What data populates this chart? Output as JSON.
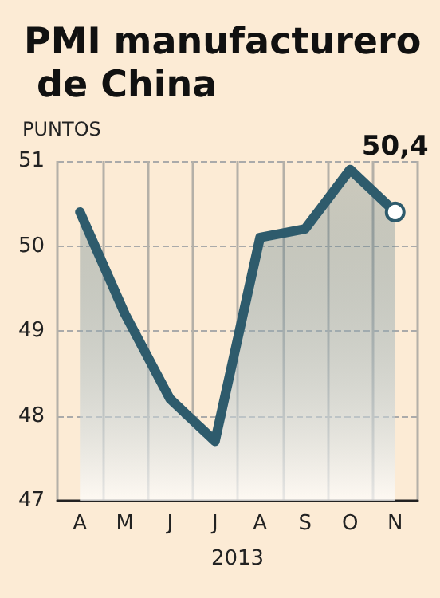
{
  "chart_data": {
    "type": "area",
    "title": "PMI manufacturero de China",
    "ylabel": "PUNTOS",
    "xlabel": "2013",
    "categories": [
      "A",
      "M",
      "J",
      "J",
      "A",
      "S",
      "O",
      "N"
    ],
    "series": [
      {
        "color": "#2e5b6c",
        "values": [
          50.4,
          49.2,
          48.2,
          47.7,
          50.1,
          50.2,
          50.9,
          50.4
        ]
      }
    ],
    "ylim": [
      47,
      51
    ],
    "yticks": [
      47,
      48,
      49,
      50,
      51
    ],
    "grid": true,
    "marker": "none",
    "line_style": "solid",
    "annotations": [
      {
        "text": "50,4",
        "x": "N",
        "y": 50.4
      }
    ]
  }
}
